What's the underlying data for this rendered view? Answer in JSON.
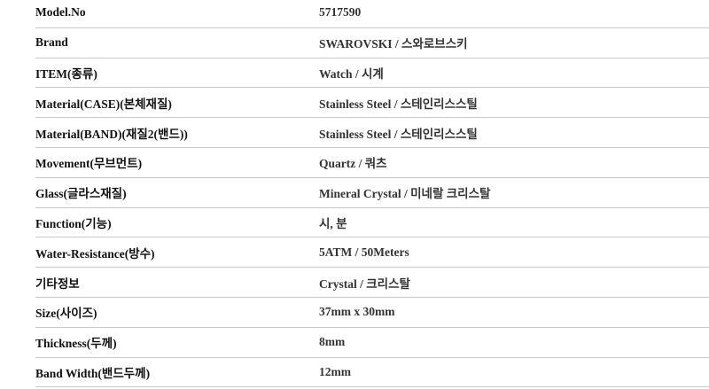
{
  "specs": [
    {
      "label": "Model.No",
      "value": "5717590"
    },
    {
      "label": "Brand",
      "value": "SWAROVSKI / 스와로브스키"
    },
    {
      "label": "ITEM(종류)",
      "value": "Watch / 시계"
    },
    {
      "label": "Material(CASE)(본체재질)",
      "value": "Stainless Steel / 스테인리스스틸"
    },
    {
      "label": "Material(BAND)(재질2(밴드))",
      "value": "Stainless Steel / 스테인리스스틸"
    },
    {
      "label": "Movement(무브먼트)",
      "value": "Quartz / 쿼츠"
    },
    {
      "label": "Glass(글라스재질)",
      "value": "Mineral Crystal / 미네랄 크리스탈"
    },
    {
      "label": "Function(기능)",
      "value": "시, 분"
    },
    {
      "label": "Water-Resistance(방수)",
      "value": "5ATM / 50Meters"
    },
    {
      "label": "기타정보",
      "value": "Crystal / 크리스탈"
    },
    {
      "label": "Size(사이즈)",
      "value": "37mm x 30mm"
    },
    {
      "label": "Thickness(두께)",
      "value": "8mm"
    },
    {
      "label": "Band Width(밴드두께)",
      "value": "12mm"
    }
  ]
}
